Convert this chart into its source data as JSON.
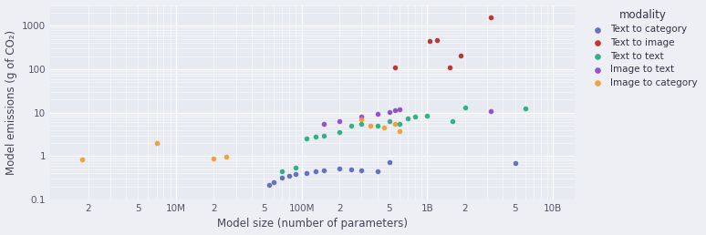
{
  "xlabel": "Model size (number of parameters)",
  "ylabel": "Model emissions (g of CO₂)",
  "bg_color": "#e8eaf2",
  "fig_bg_color": "#eeeef5",
  "legend_title": "modality",
  "xlim": [
    1000000.0,
    15000000000.0
  ],
  "ylim": [
    0.1,
    3000
  ],
  "points": {
    "Text to category": {
      "color": "#5566bb",
      "x": [
        55000000.0,
        60000000.0,
        70000000.0,
        80000000.0,
        90000000.0,
        110000000.0,
        130000000.0,
        150000000.0,
        200000000.0,
        250000000.0,
        300000000.0,
        400000000.0,
        500000000.0,
        5000000000.0
      ],
      "y": [
        0.22,
        0.25,
        0.32,
        0.35,
        0.38,
        0.4,
        0.45,
        0.48,
        0.52,
        0.5,
        0.48,
        0.45,
        0.72,
        0.68
      ]
    },
    "Text to image": {
      "color": "#bb2222",
      "x": [
        550000000.0,
        1050000000.0,
        1200000000.0,
        1500000000.0,
        1850000000.0,
        3200000000.0
      ],
      "y": [
        110,
        450,
        480,
        110,
        210,
        1600
      ]
    },
    "Text to text": {
      "color": "#22aa77",
      "x": [
        70000000.0,
        90000000.0,
        110000000.0,
        130000000.0,
        150000000.0,
        200000000.0,
        250000000.0,
        300000000.0,
        400000000.0,
        500000000.0,
        600000000.0,
        700000000.0,
        800000000.0,
        1000000000.0,
        1600000000.0,
        2000000000.0,
        6000000000.0
      ],
      "y": [
        0.45,
        0.55,
        2.5,
        2.8,
        3.0,
        3.5,
        5.0,
        5.5,
        5.0,
        6.5,
        5.5,
        7.5,
        8.0,
        8.5,
        6.5,
        13.0,
        12.5
      ]
    },
    "Image to text": {
      "color": "#8844cc",
      "x": [
        150000000.0,
        200000000.0,
        300000000.0,
        400000000.0,
        500000000.0,
        550000000.0,
        600000000.0,
        3200000000.0
      ],
      "y": [
        5.5,
        6.5,
        8.0,
        9.5,
        10.5,
        11.5,
        12.0,
        11.0
      ]
    },
    "Image to category": {
      "color": "#ee9933",
      "x": [
        1800000.0,
        7000000.0,
        20000000.0,
        25000000.0,
        300000000.0,
        350000000.0,
        450000000.0,
        550000000.0,
        600000000.0
      ],
      "y": [
        0.82,
        2.0,
        0.9,
        0.95,
        7.0,
        5.0,
        4.5,
        5.5,
        3.8
      ]
    }
  }
}
